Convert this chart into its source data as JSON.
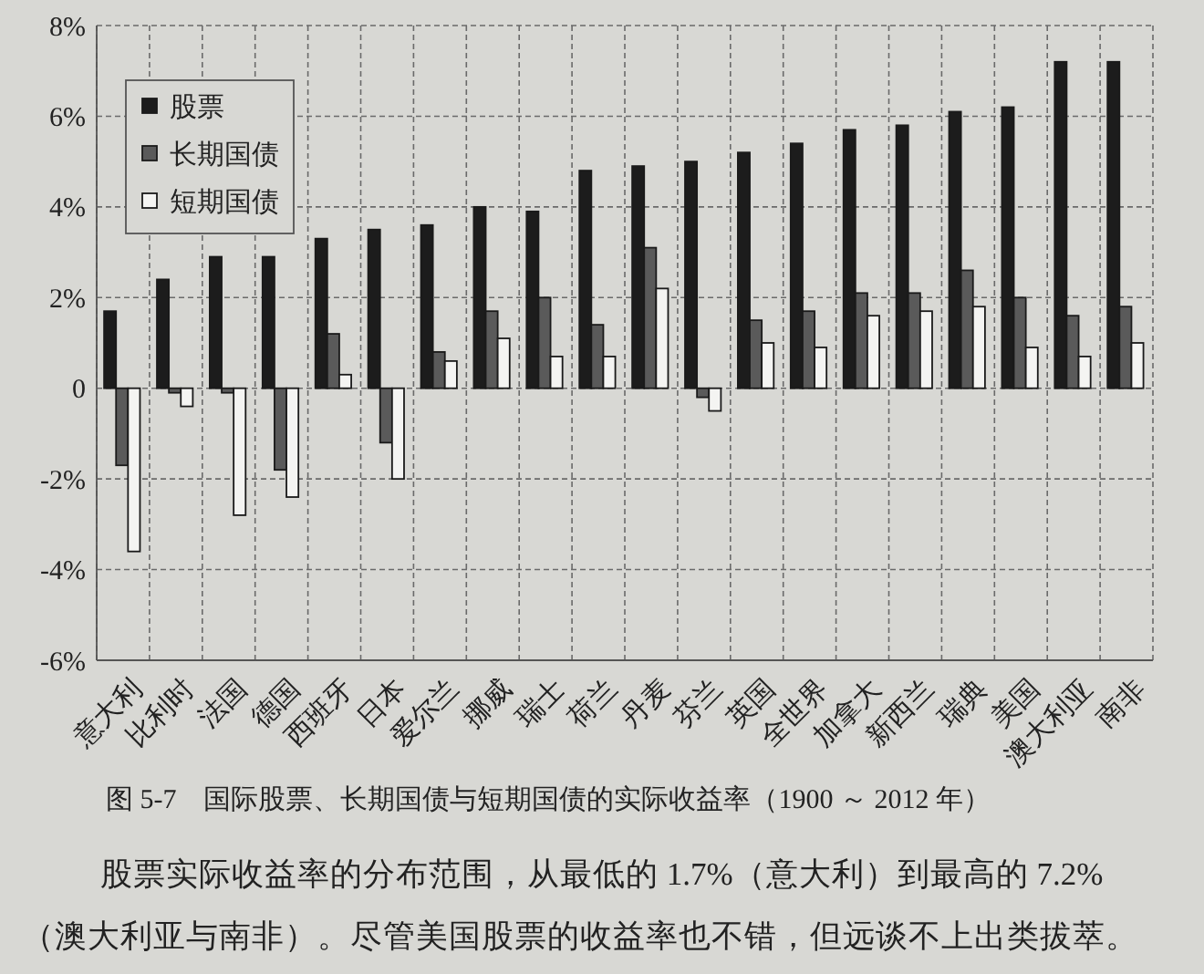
{
  "chart_data": {
    "type": "bar",
    "title": "图 5-7　国际股票、长期国债与短期国债的实际收益率（1900 ～ 2012 年）",
    "categories": [
      "意大利",
      "比利时",
      "法国",
      "德国",
      "西班牙",
      "日本",
      "爱尔兰",
      "挪威",
      "瑞士",
      "荷兰",
      "丹麦",
      "芬兰",
      "英国",
      "全世界",
      "加拿大",
      "新西兰",
      "瑞典",
      "美国",
      "澳大利亚",
      "南非"
    ],
    "series": [
      {
        "name": "股票",
        "color": "#1c1c1c",
        "values": [
          1.7,
          2.4,
          2.9,
          2.9,
          3.3,
          3.5,
          3.6,
          4.0,
          3.9,
          4.8,
          4.9,
          5.0,
          5.2,
          5.4,
          5.7,
          5.8,
          6.1,
          6.2,
          7.2,
          7.2
        ]
      },
      {
        "name": "长期国债",
        "color": "#5a5a5a",
        "values": [
          -1.7,
          -0.1,
          -0.1,
          -1.8,
          1.2,
          -1.2,
          0.8,
          1.7,
          2.0,
          1.4,
          3.1,
          -0.2,
          1.5,
          1.7,
          2.1,
          2.1,
          2.6,
          2.0,
          1.6,
          1.8
        ]
      },
      {
        "name": "短期国债",
        "color": "#f4f4f2",
        "values": [
          -3.6,
          -0.4,
          -2.8,
          -2.4,
          0.3,
          -2.0,
          0.6,
          1.1,
          0.7,
          0.7,
          2.2,
          -0.5,
          1.0,
          0.9,
          1.6,
          1.7,
          1.8,
          0.9,
          0.7,
          1.0
        ]
      }
    ],
    "ylim": [
      -6,
      8
    ],
    "yticks": [
      {
        "value": -6,
        "label": "-6%"
      },
      {
        "value": -4,
        "label": "-4%"
      },
      {
        "value": -2,
        "label": "-2%"
      },
      0,
      {
        "value": 2,
        "label": "2%"
      },
      {
        "value": 4,
        "label": "4%"
      },
      {
        "value": 6,
        "label": "6%"
      },
      {
        "value": 8,
        "label": "8%"
      }
    ],
    "grid": true,
    "legend": "top left",
    "annotations": [
      "股票实际收益率的分布范围，从最低的 1.7%（意大利）到最高的 7.2%（澳大利亚与南非）。尽管美国股票的收益率也不错，但远谈不上出类拔萃。"
    ]
  }
}
